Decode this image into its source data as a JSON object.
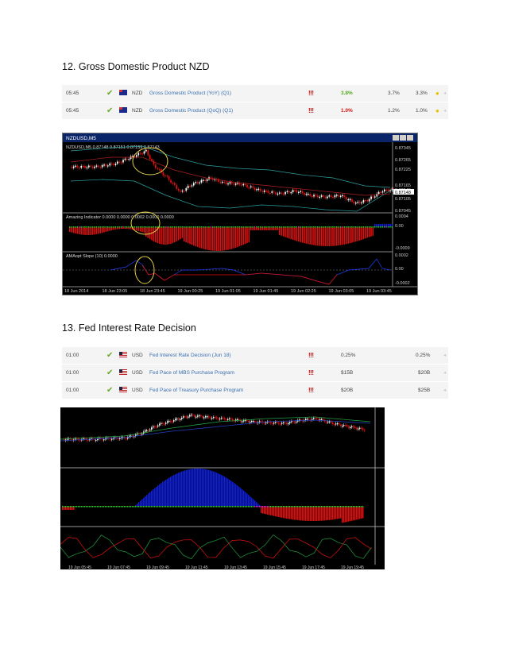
{
  "section1": {
    "heading": "12. Gross Domestic Product NZD",
    "rows": [
      {
        "time": "05:45",
        "currency": "NZD",
        "event": "Gross Domestic Product (YoY) (Q1)",
        "impact": "!!!",
        "actual": "3.8%",
        "forecast": "3.7%",
        "previous": "3.3%"
      },
      {
        "time": "05:45",
        "currency": "NZD",
        "event": "Gross Domestic Product (QoQ) (Q1)",
        "impact": "!!!",
        "actual": "1.0%",
        "forecast": "1.2%",
        "previous": "1.0%"
      }
    ]
  },
  "chart1": {
    "window_title": "NZDUSD,M5",
    "ohlc": "NZDUSD,M5 0.87148 0.87151 0.87159 0.87143",
    "price_ticks": [
      "0.87345",
      "0.87265",
      "0.87225",
      "0.87165",
      "0.87145",
      "0.87105",
      "0.87045"
    ],
    "price_label": "0.87148",
    "ind1_label": "Amazing Indicator 0.0000 0.0000 0.0002 0.0000 0.0000",
    "ind1_ticks": [
      "0.0004",
      "0.00",
      "-0.0009"
    ],
    "ind2_label": "AMAopt Slope (10) 0.0000",
    "ind2_ticks": [
      "0.0002",
      "0.00",
      "-0.0002"
    ],
    "time_labels": [
      "18 Jun 2014",
      "18 Jun 23:05",
      "18 Jun 23:45",
      "19 Jun 00:25",
      "19 Jun 01:05",
      "19 Jun 01:45",
      "19 Jun 02:25",
      "19 Jun 03:05",
      "19 Jun 03:45"
    ]
  },
  "section2": {
    "heading": "13. Fed Interest Rate Decision",
    "rows": [
      {
        "time": "01:00",
        "currency": "USD",
        "event": "Fed Interest Rate Decision (Jun 18)",
        "impact": "!!!",
        "actual": "0.25%",
        "forecast": "",
        "previous": "0.25%"
      },
      {
        "time": "01:00",
        "currency": "USD",
        "event": "Fed Pace of MBS Purchase Program",
        "impact": "!!!",
        "actual": "$15B",
        "forecast": "",
        "previous": "$20B"
      },
      {
        "time": "01:00",
        "currency": "USD",
        "event": "Fed Pace of Treasury Purchase Program",
        "impact": "!!!",
        "actual": "$20B",
        "forecast": "",
        "previous": "$25B"
      }
    ]
  },
  "chart2": {
    "time_labels": [
      "19 Jun 05:45",
      "19 Jun 07:45",
      "19 Jun 09:45",
      "19 Jun 11:45",
      "19 Jun 13:45",
      "19 Jun 15:45",
      "19 Jun 17:45",
      "19 Jun 19:45"
    ]
  },
  "colors": {
    "bull": "#ffffff",
    "bear": "#e01010",
    "hist_pos": "#1020e0",
    "hist_neg": "#e01010",
    "dot_green": "#20d020",
    "dot_magenta": "#e020e0",
    "annotation": "#e6d24a"
  },
  "icons": {
    "check": "checkmark-icon",
    "impact": "exclamation-icon",
    "dot": "dot-icon"
  }
}
